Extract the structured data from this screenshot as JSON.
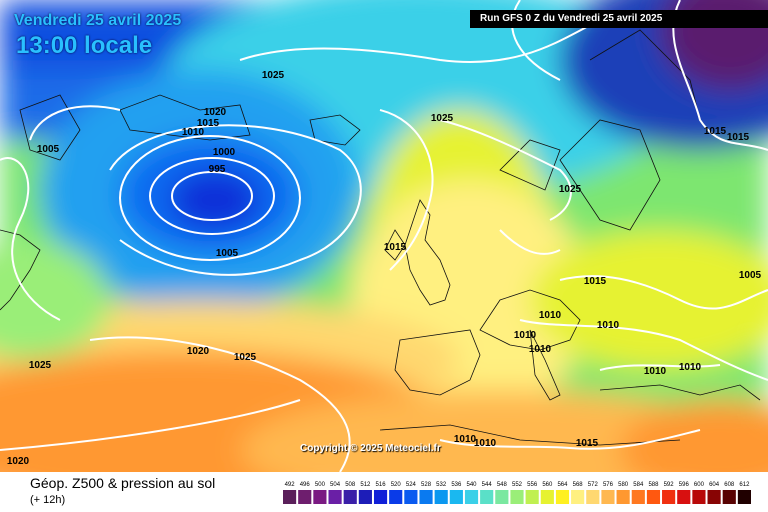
{
  "header": {
    "date": "Vendredi 25 avril 2025",
    "local_time": "13:00 locale",
    "run_info": "Run GFS 0 Z du Vendredi 25 avril 2025"
  },
  "copyright": "Copyright © 2025 Meteociel.fr",
  "footer": {
    "parameter": "Géop. Z500 & pression au sol",
    "lead_time": "(+ 12h)"
  },
  "legend": {
    "values": [
      "492",
      "496",
      "500",
      "504",
      "508",
      "512",
      "516",
      "520",
      "524",
      "528",
      "532",
      "536",
      "540",
      "544",
      "548",
      "552",
      "556",
      "560",
      "564",
      "568",
      "572",
      "576",
      "580",
      "584",
      "588",
      "592",
      "596",
      "600",
      "604",
      "608",
      "612"
    ],
    "colors": [
      "#5a1f5a",
      "#6e1e6e",
      "#7a1a82",
      "#6a1fa6",
      "#3a1fa8",
      "#1d1db8",
      "#0f1fd8",
      "#0a3be8",
      "#0a5af0",
      "#0a7af0",
      "#0a98f0",
      "#1ab8f0",
      "#3ad0e8",
      "#5ae0c8",
      "#7ae8a0",
      "#9aee78",
      "#c0f050",
      "#e6f230",
      "#fff020",
      "#fff080",
      "#ffd870",
      "#ffb850",
      "#ff9830",
      "#ff7820",
      "#ff5810",
      "#f03010",
      "#d81010",
      "#b80808",
      "#880404",
      "#580202",
      "#200000"
    ]
  },
  "isobar_labels": [
    "1025",
    "1020",
    "1025",
    "1015",
    "1010",
    "1005",
    "1000",
    "995",
    "1005",
    "1015",
    "1025",
    "1015",
    "1015",
    "1010",
    "1005",
    "1015",
    "1010",
    "1010",
    "1010",
    "1010",
    "1010",
    "1020",
    "1025",
    "1025",
    "1020",
    "1010",
    "1010",
    "1015"
  ]
}
